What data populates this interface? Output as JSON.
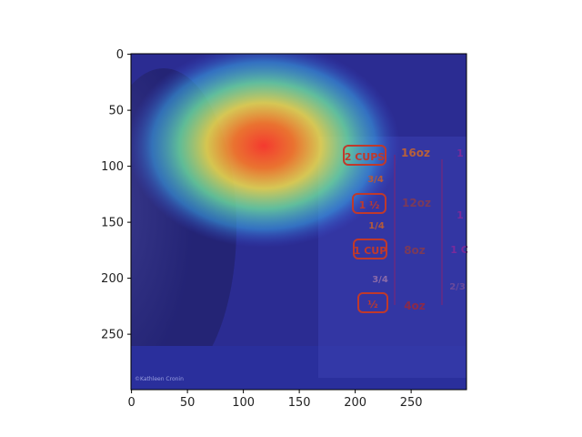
{
  "x_axis": {
    "ticks": [
      0,
      50,
      100,
      150,
      200,
      250
    ],
    "range": [
      0,
      299
    ]
  },
  "y_axis": {
    "ticks": [
      0,
      50,
      100,
      150,
      200,
      250
    ],
    "range": [
      0,
      299
    ],
    "inverted": true
  },
  "photo": {
    "watermark": "©Kathleen Cronin",
    "cup_markings_left": [
      "2 CUPS",
      "1 ½",
      "1 CUP",
      "½"
    ],
    "cup_fractions": [
      "3/4",
      "1/4",
      "3/4"
    ],
    "cup_oz": [
      "16oz",
      "12oz",
      "8oz",
      "4oz"
    ],
    "cup_markings_right": [
      "1",
      "1",
      "1 C",
      "2/3"
    ]
  },
  "colors": {
    "colormap": "jet",
    "cup_label": "#c0392b",
    "cup_label_right": "#7a2a9a"
  }
}
